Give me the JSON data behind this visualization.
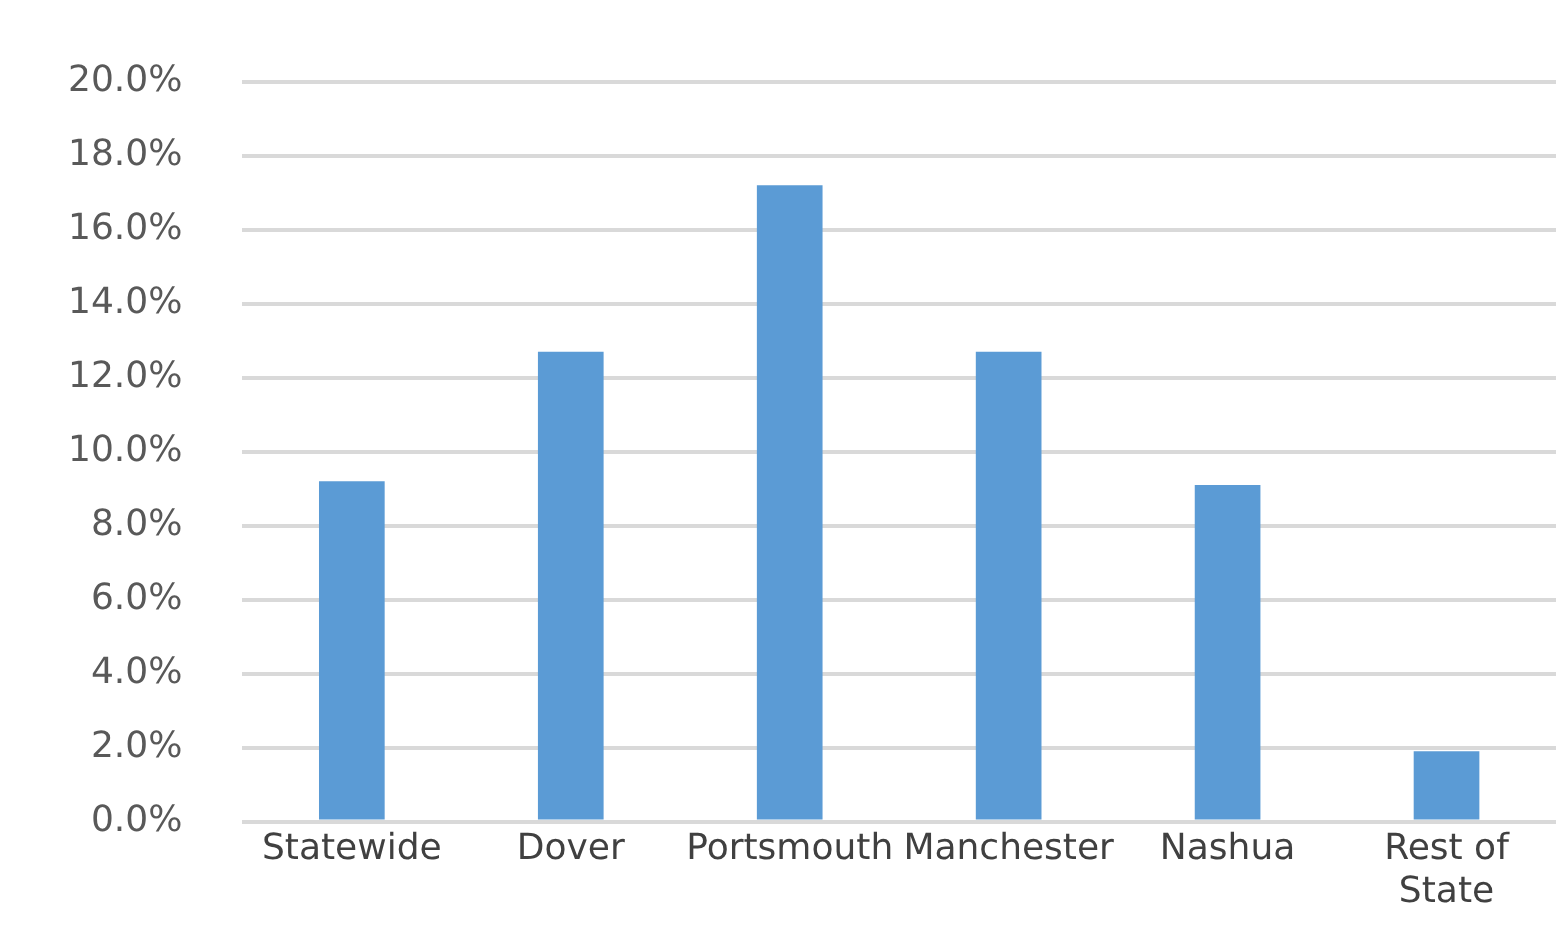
{
  "chart_data": {
    "type": "bar",
    "categories": [
      "Statewide",
      "Dover",
      "Portsmouth",
      "Manchester",
      "Nashua",
      "Rest of State"
    ],
    "values": [
      9.2,
      12.7,
      17.2,
      12.7,
      9.1,
      1.9
    ],
    "color": "#5b9bd5",
    "ylim": [
      0,
      20
    ],
    "yticks": [
      {
        "value": 0,
        "label": "0.0%"
      },
      {
        "value": 2,
        "label": "2.0%"
      },
      {
        "value": 4,
        "label": "4.0%"
      },
      {
        "value": 6,
        "label": "6.0%"
      },
      {
        "value": 8,
        "label": "8.0%"
      },
      {
        "value": 10,
        "label": "10.0%"
      },
      {
        "value": 12,
        "label": "12.0%"
      },
      {
        "value": 14,
        "label": "14.0%"
      },
      {
        "value": 16,
        "label": "16.0%"
      },
      {
        "value": 18,
        "label": "18.0%"
      },
      {
        "value": 20,
        "label": "20.0%"
      }
    ],
    "grid": "y",
    "legend": false
  }
}
